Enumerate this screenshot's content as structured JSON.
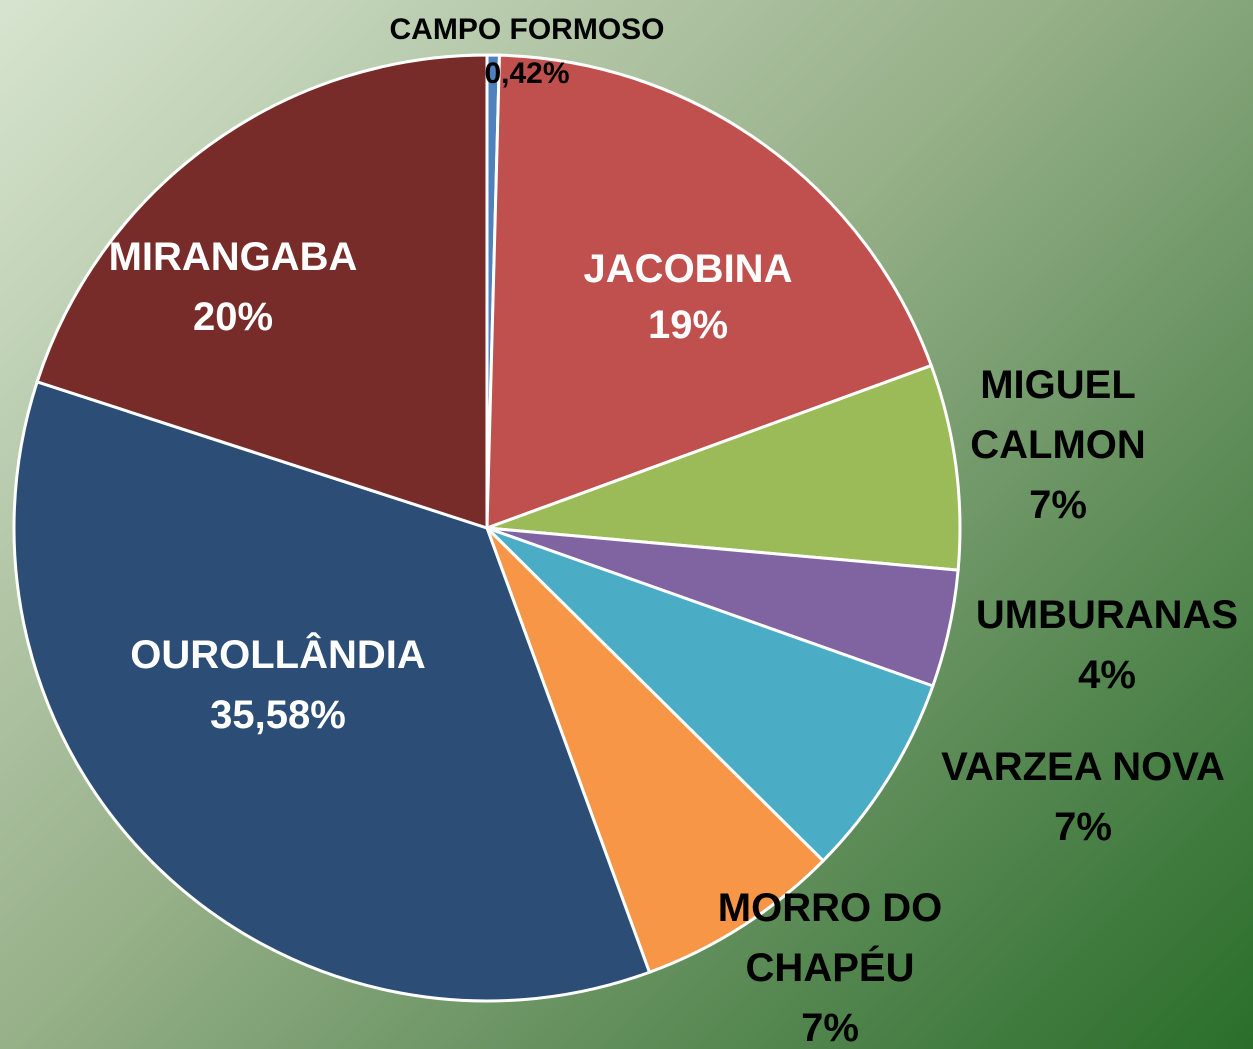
{
  "chart_data": {
    "type": "pie",
    "categories": [
      "CAMPO FORMOSO",
      "JACOBINA",
      "MIGUEL CALMON",
      "UMBURANAS",
      "VARZEA NOVA",
      "MORRO DO CHAPÉU",
      "OUROLLÂNDIA",
      "MIRANGABA"
    ],
    "values": [
      0.42,
      19,
      7,
      4,
      7,
      7,
      35.58,
      20
    ],
    "value_labels": [
      "0,42%",
      "19%",
      "7%",
      "4%",
      "7%",
      "7%",
      "35,58%",
      "20%"
    ],
    "colors": [
      "#4f81bd",
      "#c0504d",
      "#9bbb59",
      "#8064a2",
      "#4bacc6",
      "#f79646",
      "#2c4d75",
      "#772c2a"
    ]
  }
}
